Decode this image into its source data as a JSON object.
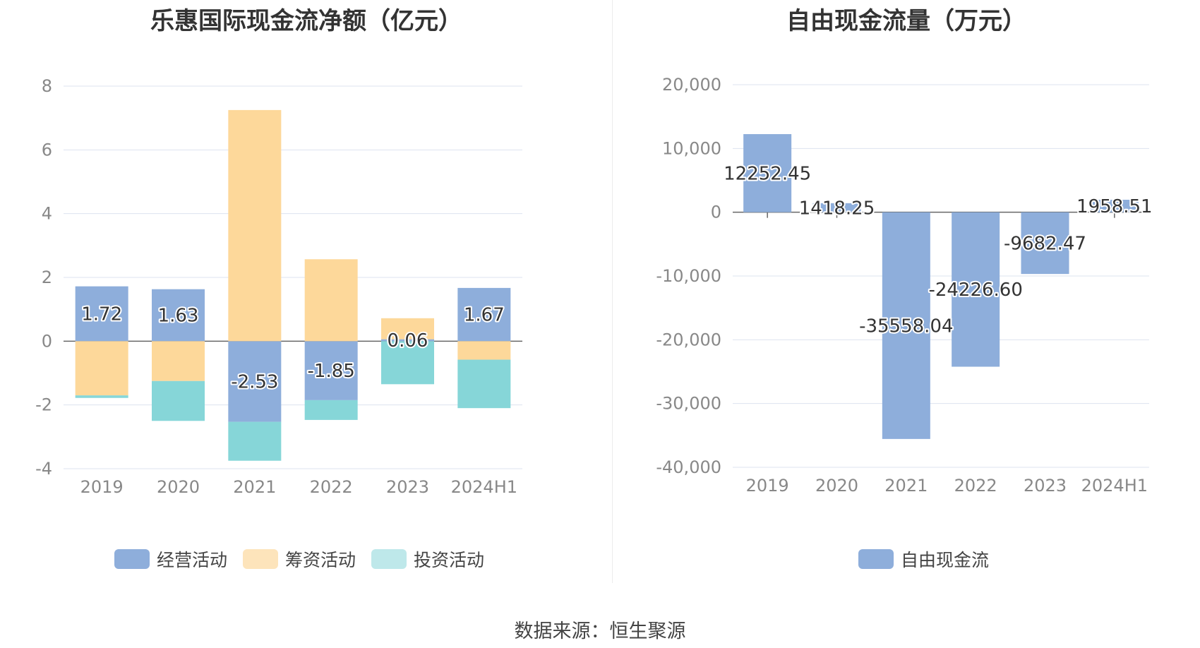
{
  "chart_data": [
    {
      "type": "bar",
      "stacked": true,
      "title": "乐惠国际现金流净额（亿元）",
      "categories": [
        "2019",
        "2020",
        "2021",
        "2022",
        "2023",
        "2024H1"
      ],
      "ylim": [
        -4,
        8
      ],
      "yticks": [
        "8",
        "6",
        "4",
        "2",
        "0",
        "-2",
        "-4"
      ],
      "grid": true,
      "legend_position": "bottom",
      "series": [
        {
          "name": "经营活动",
          "color": "#8eaedb",
          "values": [
            1.72,
            1.63,
            -2.53,
            -1.85,
            0.06,
            1.67
          ],
          "labels": [
            "1.72",
            "1.63",
            "-2.53",
            "-1.85",
            "0.06",
            "1.67"
          ]
        },
        {
          "name": "筹资活动",
          "color": "#fdd89a",
          "values": [
            -1.7,
            -1.25,
            7.25,
            2.57,
            0.66,
            -0.58
          ]
        },
        {
          "name": "投资活动",
          "color": "#86d6d8",
          "values": [
            -0.08,
            -1.25,
            -1.22,
            -0.62,
            -1.35,
            -1.52
          ]
        }
      ]
    },
    {
      "type": "bar",
      "title": "自由现金流量（万元）",
      "categories": [
        "2019",
        "2020",
        "2021",
        "2022",
        "2023",
        "2024H1"
      ],
      "ylim": [
        -40000,
        20000
      ],
      "yticks": [
        "20,000",
        "10,000",
        "0",
        "-10,000",
        "-20,000",
        "-30,000",
        "-40,000"
      ],
      "grid": true,
      "legend_position": "bottom",
      "series": [
        {
          "name": "自由现金流",
          "color": "#8eaedb",
          "values": [
            12252.45,
            1418.25,
            -35558.04,
            -24226.6,
            -9682.47,
            1958.51
          ],
          "labels": [
            "12252.45",
            "1418.25",
            "-35558.04",
            "-24226.60",
            "-9682.47",
            "1958.51"
          ]
        }
      ]
    }
  ],
  "legend_left_swatch_colors": [
    "#8eaedb",
    "#fde4bb",
    "#bee8ea"
  ],
  "source_text": "数据来源：恒生聚源"
}
